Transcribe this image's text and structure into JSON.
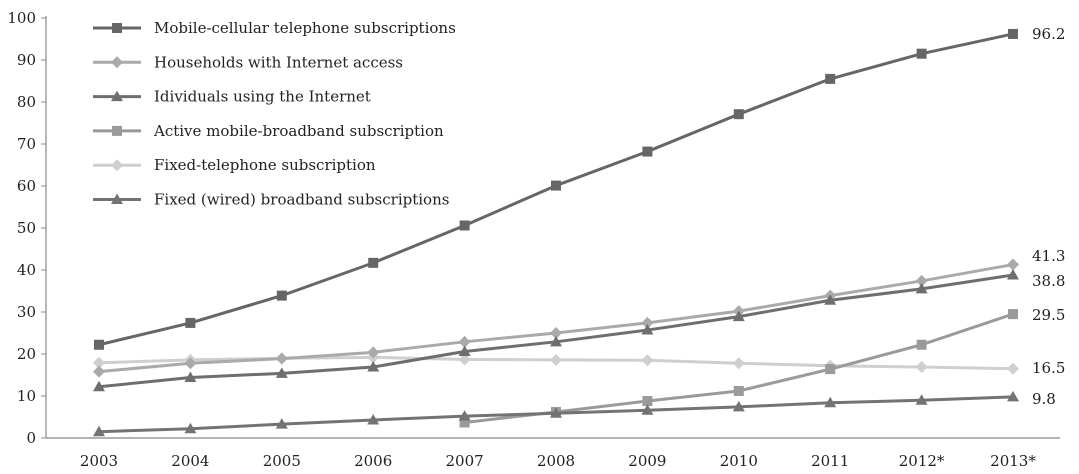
{
  "chart_data": {
    "type": "line",
    "title": "",
    "xlabel": "",
    "ylabel": "",
    "ylim": [
      0,
      100
    ],
    "yticks": [
      "0",
      "10",
      "20",
      "30",
      "40",
      "50",
      "60",
      "70",
      "80",
      "90",
      "100"
    ],
    "categories": [
      "2003",
      "2004",
      "2005",
      "2006",
      "2007",
      "2008",
      "2009",
      "2010",
      "2011",
      "2012*",
      "2013*"
    ],
    "grid": false,
    "legend_position": "top-left",
    "series": [
      {
        "name": "Mobile-cellular telephone subscriptions",
        "color": "#666666",
        "marker": "square",
        "values": [
          22.2,
          27.4,
          33.9,
          41.7,
          50.6,
          60.1,
          68.2,
          77.1,
          85.5,
          91.5,
          96.2
        ],
        "end_label": "96.2"
      },
      {
        "name": "Households with Internet access",
        "color": "#aaaaaa",
        "marker": "diamond",
        "values": [
          15.8,
          17.8,
          18.9,
          20.4,
          22.9,
          25.0,
          27.4,
          30.2,
          33.9,
          37.4,
          41.3
        ],
        "end_label": "41.3"
      },
      {
        "name": "Idividuals using the Internet",
        "color": "#6e6e6e",
        "marker": "triangle",
        "values": [
          12.2,
          14.4,
          15.4,
          16.9,
          20.6,
          22.9,
          25.7,
          28.9,
          32.8,
          35.5,
          38.8
        ],
        "end_label": "38.8"
      },
      {
        "name": "Active mobile-broadband subscription",
        "color": "#9a9a9a",
        "marker": "square",
        "values": [
          null,
          null,
          null,
          null,
          3.7,
          6.2,
          8.8,
          11.2,
          16.4,
          22.2,
          29.5
        ],
        "end_label": "29.5"
      },
      {
        "name": "Fixed-telephone subscription",
        "color": "#cfcfcf",
        "marker": "diamond",
        "values": [
          17.9,
          18.6,
          19.0,
          19.2,
          18.7,
          18.6,
          18.5,
          17.8,
          17.2,
          16.9,
          16.5
        ],
        "end_label": "16.5"
      },
      {
        "name": "Fixed (wired) broadband subscriptions",
        "color": "#737373",
        "marker": "triangle",
        "values": [
          1.5,
          2.2,
          3.3,
          4.3,
          5.2,
          5.9,
          6.6,
          7.4,
          8.4,
          9.0,
          9.8
        ],
        "end_label": "9.8"
      }
    ]
  }
}
